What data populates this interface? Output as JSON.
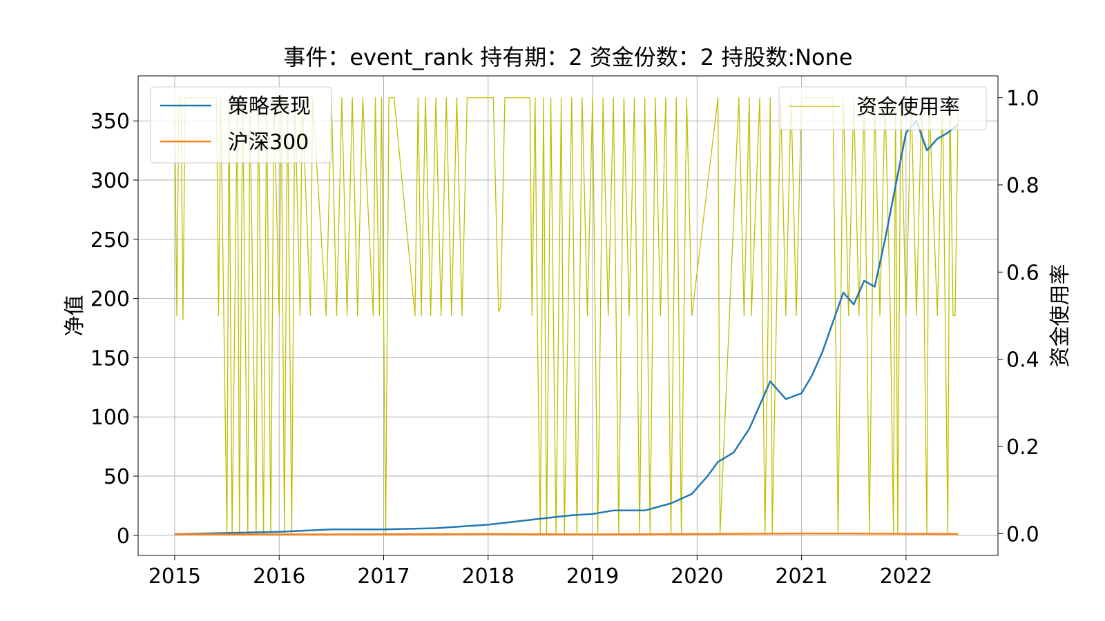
{
  "chart_data": {
    "type": "line",
    "title": "事件：event_rank 持有期：2 资金份数：2 持股数:None",
    "ylabel": "净值",
    "ylabel_right": "资金使用率",
    "xlabel": "",
    "x_ticks": [
      "2015",
      "2016",
      "2017",
      "2018",
      "2019",
      "2020",
      "2021",
      "2022"
    ],
    "y_ticks": [
      "0",
      "50",
      "100",
      "150",
      "200",
      "250",
      "300",
      "350"
    ],
    "y_right_ticks": [
      "0.0",
      "0.2",
      "0.4",
      "0.6",
      "0.8",
      "1.0"
    ],
    "xlim": [
      2014.65,
      2022.88
    ],
    "ylim": [
      -17,
      388
    ],
    "ylim_right": [
      -0.05,
      1.05
    ],
    "grid": true,
    "legend_left": {
      "placement": "top-left",
      "entries": [
        "策略表现",
        "沪深300"
      ]
    },
    "legend_right": {
      "placement": "top-right",
      "entries": [
        "资金使用率"
      ]
    },
    "colors": {
      "strategy": "#1f77b4",
      "hs300": "#ff7f0e",
      "usage": "#bfbf00"
    },
    "series": [
      {
        "name": "策略表现",
        "axis": "left",
        "x": [
          2015.0,
          2015.5,
          2016.0,
          2016.5,
          2017.0,
          2017.5,
          2018.0,
          2018.3,
          2018.5,
          2018.8,
          2019.0,
          2019.2,
          2019.5,
          2019.75,
          2019.95,
          2020.1,
          2020.2,
          2020.35,
          2020.5,
          2020.6,
          2020.7,
          2020.85,
          2021.0,
          2021.1,
          2021.2,
          2021.3,
          2021.4,
          2021.5,
          2021.6,
          2021.7,
          2021.8,
          2021.9,
          2022.0,
          2022.1,
          2022.2,
          2022.3,
          2022.4,
          2022.5
        ],
        "values": [
          1,
          2,
          3,
          5,
          5,
          6,
          9,
          12,
          14,
          17,
          18,
          21,
          21,
          27,
          35,
          50,
          62,
          70,
          90,
          110,
          130,
          115,
          120,
          135,
          155,
          180,
          205,
          195,
          215,
          210,
          250,
          295,
          340,
          350,
          325,
          335,
          340,
          347
        ]
      },
      {
        "name": "沪深300",
        "axis": "left",
        "x": [
          2015.0,
          2016.0,
          2017.0,
          2018.0,
          2019.0,
          2020.0,
          2021.0,
          2021.5,
          2022.0,
          2022.5
        ],
        "values": [
          1.0,
          0.8,
          0.9,
          1.1,
          0.8,
          1.1,
          1.6,
          1.5,
          1.3,
          1.1
        ]
      },
      {
        "name": "资金使用率",
        "axis": "right",
        "x": [
          2015.0,
          2015.02,
          2015.04,
          2015.06,
          2015.08,
          2015.1,
          2015.4,
          2015.42,
          2015.44,
          2015.5,
          2015.52,
          2015.55,
          2015.6,
          2015.62,
          2015.65,
          2015.7,
          2015.72,
          2015.78,
          2015.8,
          2015.85,
          2015.88,
          2015.92,
          2015.95,
          2016.0,
          2016.02,
          2016.05,
          2016.08,
          2016.12,
          2016.15,
          2016.2,
          2016.22,
          2016.3,
          2016.32,
          2016.45,
          2016.5,
          2016.55,
          2016.6,
          2016.65,
          2016.7,
          2016.75,
          2016.8,
          2016.9,
          2016.92,
          2016.96,
          2016.98,
          2017.02,
          2017.05,
          2017.1,
          2017.3,
          2017.33,
          2017.36,
          2017.4,
          2017.45,
          2017.5,
          2017.55,
          2017.6,
          2017.65,
          2017.7,
          2017.75,
          2017.8,
          2018.05,
          2018.1,
          2018.12,
          2018.16,
          2018.4,
          2018.42,
          2018.45,
          2018.47,
          2018.5,
          2018.53,
          2018.56,
          2018.6,
          2018.65,
          2018.7,
          2018.73,
          2018.8,
          2018.85,
          2018.9,
          2018.95,
          2019.0,
          2019.05,
          2019.1,
          2019.15,
          2019.2,
          2019.25,
          2019.3,
          2019.35,
          2019.4,
          2019.45,
          2019.5,
          2019.55,
          2019.6,
          2019.65,
          2019.7,
          2019.75,
          2019.8,
          2019.85,
          2019.9,
          2019.95,
          2020.2,
          2020.22,
          2020.4,
          2020.45,
          2020.5,
          2020.52,
          2020.6,
          2020.65,
          2020.68,
          2020.7,
          2020.72,
          2020.8,
          2020.85,
          2020.9,
          2020.95,
          2021.0,
          2021.3,
          2021.35,
          2021.4,
          2021.45,
          2021.5,
          2021.55,
          2021.6,
          2021.65,
          2021.7,
          2021.75,
          2021.8,
          2021.85,
          2021.88,
          2021.9,
          2021.92,
          2021.95,
          2022.0,
          2022.05,
          2022.1,
          2022.15,
          2022.2,
          2022.22,
          2022.3,
          2022.35,
          2022.4,
          2022.42,
          2022.45,
          2022.47,
          2022.5
        ],
        "values": [
          1.0,
          0.5,
          1.0,
          1.0,
          0.49,
          1.0,
          1.0,
          0.5,
          1.0,
          0.0,
          1.0,
          0.0,
          1.0,
          0.0,
          1.0,
          0.0,
          1.0,
          0.0,
          1.0,
          0.0,
          1.0,
          0.0,
          1.0,
          0.5,
          1.0,
          0.0,
          1.0,
          0.0,
          1.0,
          0.5,
          1.0,
          0.5,
          1.0,
          0.5,
          1.0,
          0.5,
          1.0,
          0.5,
          1.0,
          0.5,
          1.0,
          0.5,
          1.0,
          0.5,
          1.0,
          0.0,
          1.0,
          1.0,
          0.5,
          1.0,
          0.5,
          1.0,
          0.5,
          1.0,
          0.5,
          1.0,
          0.5,
          1.0,
          0.5,
          1.0,
          1.0,
          0.51,
          0.52,
          1.0,
          1.0,
          0.5,
          1.0,
          0.5,
          0.0,
          1.0,
          0.0,
          1.0,
          0.0,
          1.0,
          0.0,
          1.0,
          0.0,
          1.0,
          0.5,
          1.0,
          0.0,
          1.0,
          0.5,
          1.0,
          0.0,
          1.0,
          0.5,
          1.0,
          0.0,
          1.0,
          0.0,
          1.0,
          0.5,
          1.0,
          0.0,
          1.0,
          0.0,
          1.0,
          0.5,
          1.0,
          0.0,
          1.0,
          0.5,
          1.0,
          0.5,
          1.0,
          0.0,
          0.5,
          1.0,
          0.0,
          1.0,
          0.5,
          1.0,
          0.5,
          1.0,
          1.0,
          0.0,
          1.0,
          0.5,
          1.0,
          0.5,
          1.0,
          0.0,
          1.0,
          0.5,
          1.0,
          0.5,
          0.0,
          1.0,
          0.0,
          1.0,
          0.5,
          1.0,
          0.5,
          1.0,
          0.0,
          1.0,
          0.5,
          1.0,
          0.0,
          1.0,
          0.5,
          0.5,
          1.0
        ]
      }
    ]
  }
}
